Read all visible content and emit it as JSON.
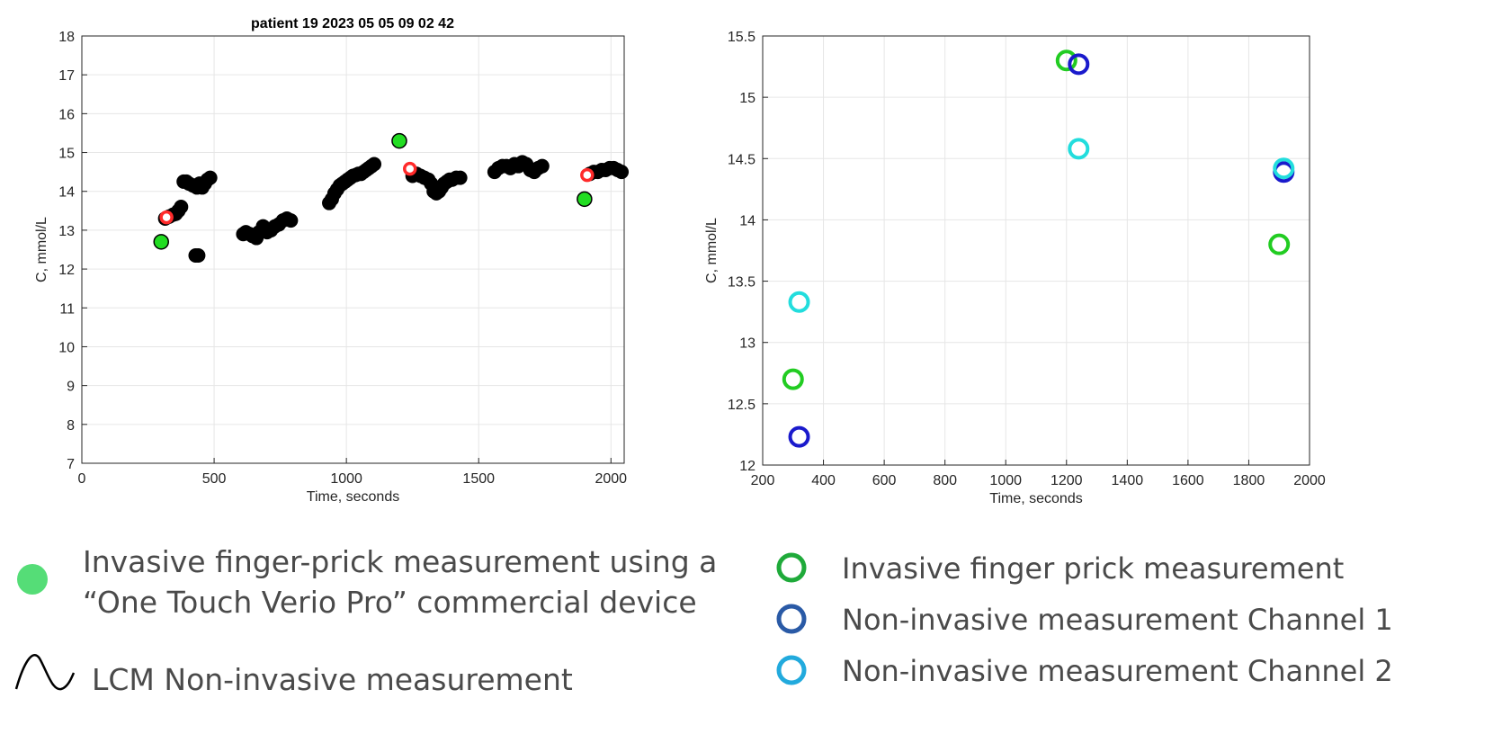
{
  "chart_data": [
    {
      "type": "scatter",
      "title": "patient 19 2023 05 05 09 02 42",
      "xlabel": "Time, seconds",
      "ylabel": "C, mmol/L",
      "xlim": [
        0,
        2050
      ],
      "ylim": [
        7,
        18
      ],
      "xticks": [
        0,
        500,
        1000,
        1500,
        2000
      ],
      "yticks": [
        7,
        8,
        9,
        10,
        11,
        12,
        13,
        14,
        15,
        16,
        17,
        18
      ],
      "grid": true,
      "series": [
        {
          "color": "#000000",
          "marker": "filled-circle",
          "x": [
            315,
            330,
            345,
            355,
            365,
            375,
            385,
            395,
            405,
            420,
            435,
            445,
            455,
            465,
            475,
            485,
            430,
            440,
            610,
            620,
            635,
            645,
            660,
            670,
            685,
            700,
            715,
            730,
            745,
            760,
            775,
            790,
            935,
            945,
            955,
            965,
            975,
            985,
            995,
            1005,
            1015,
            1025,
            1035,
            1045,
            1055,
            1065,
            1075,
            1085,
            1095,
            1105,
            1250,
            1265,
            1280,
            1295,
            1310,
            1320,
            1330,
            1340,
            1350,
            1360,
            1370,
            1380,
            1390,
            1400,
            1415,
            1430,
            1560,
            1575,
            1590,
            1605,
            1620,
            1635,
            1650,
            1665,
            1680,
            1695,
            1710,
            1725,
            1740,
            1920,
            1935,
            1950,
            1965,
            1980,
            1995,
            2010,
            2025,
            2040
          ],
          "y": [
            13.3,
            13.35,
            13.4,
            13.42,
            13.5,
            13.6,
            14.25,
            14.25,
            14.2,
            14.15,
            14.1,
            14.2,
            14.1,
            14.2,
            14.3,
            14.35,
            12.35,
            12.35,
            12.9,
            12.95,
            12.9,
            12.85,
            12.8,
            12.95,
            13.1,
            12.95,
            13.0,
            13.1,
            13.15,
            13.25,
            13.3,
            13.25,
            13.7,
            13.8,
            13.95,
            14.05,
            14.15,
            14.2,
            14.25,
            14.3,
            14.35,
            14.4,
            14.42,
            14.45,
            14.45,
            14.5,
            14.55,
            14.6,
            14.65,
            14.7,
            14.4,
            14.45,
            14.4,
            14.35,
            14.3,
            14.2,
            14.0,
            13.95,
            14.0,
            14.1,
            14.2,
            14.25,
            14.3,
            14.3,
            14.35,
            14.35,
            14.5,
            14.6,
            14.65,
            14.65,
            14.6,
            14.7,
            14.65,
            14.75,
            14.7,
            14.55,
            14.5,
            14.6,
            14.65,
            14.45,
            14.5,
            14.5,
            14.55,
            14.55,
            14.6,
            14.6,
            14.55,
            14.5
          ]
        },
        {
          "color": "#22dd22",
          "marker": "filled-circle",
          "x": [
            300,
            1200,
            1900
          ],
          "y": [
            12.7,
            15.3,
            13.8
          ]
        },
        {
          "color": "#ff2a2a",
          "marker": "red-circle",
          "x": [
            320,
            1240,
            1910
          ],
          "y": [
            13.33,
            14.58,
            14.42
          ]
        }
      ]
    },
    {
      "type": "scatter",
      "xlabel": "Time, seconds",
      "ylabel": "C, mmol/L",
      "xlim": [
        200,
        2000
      ],
      "ylim": [
        12,
        15.5
      ],
      "xticks": [
        200,
        400,
        600,
        800,
        1000,
        1200,
        1400,
        1600,
        1800,
        2000
      ],
      "yticks": [
        12,
        12.5,
        13,
        13.5,
        14,
        14.5,
        15,
        15.5
      ],
      "grid": true,
      "series": [
        {
          "name": "Invasive  finger prick measurement",
          "color": "#22cc22",
          "marker": "open-circle",
          "x": [
            300,
            1200,
            1900
          ],
          "y": [
            12.7,
            15.3,
            13.8
          ]
        },
        {
          "name": "Non-invasive  measurement Channel 1",
          "color": "#1a1acc",
          "marker": "open-circle",
          "x": [
            320,
            1240,
            1915
          ],
          "y": [
            12.23,
            15.27,
            14.39
          ]
        },
        {
          "name": "Non-invasive  measurement Channel 2",
          "color": "#22dddd",
          "marker": "open-circle",
          "x": [
            320,
            1240,
            1915
          ],
          "y": [
            13.33,
            14.58,
            14.42
          ]
        }
      ]
    }
  ],
  "legend_left": {
    "line1": "Invasive finger-prick measurement using a",
    "line2": "“One Touch Verio Pro” commercial device",
    "line3": "LCM Non-invasive measurement",
    "dot_color": "#55dd77",
    "dot_icon": "green-dot-icon",
    "wave_icon": "wave-line-icon"
  },
  "legend_right": {
    "items": [
      {
        "label": "Invasive  finger prick measurement",
        "color": "#1faa3a",
        "icon": "ring-icon"
      },
      {
        "label": "Non-invasive  measurement Channel 1",
        "color": "#2a5aa6",
        "icon": "ring-icon"
      },
      {
        "label": "Non-invasive  measurement Channel 2",
        "color": "#22aadd",
        "icon": "ring-icon"
      }
    ]
  }
}
